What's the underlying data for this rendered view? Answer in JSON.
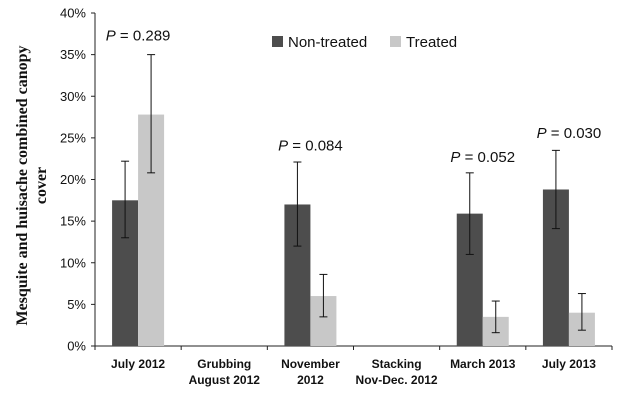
{
  "chart_data": {
    "type": "bar",
    "ylabel_lines": [
      "Mesquite and huisache combined canopy",
      "cover"
    ],
    "ylim": [
      0,
      40
    ],
    "yticks": [
      0,
      5,
      10,
      15,
      20,
      25,
      30,
      35,
      40
    ],
    "ytick_labels": [
      "0%",
      "5%",
      "10%",
      "15%",
      "20%",
      "25%",
      "30%",
      "35%",
      "40%"
    ],
    "categories": [
      [
        "July 2012"
      ],
      [
        "Grubbing",
        "August 2012"
      ],
      [
        "November",
        "2012"
      ],
      [
        "Stacking",
        "Nov-Dec. 2012"
      ],
      [
        "March 2013"
      ],
      [
        "July 2013"
      ]
    ],
    "series": [
      {
        "name": "Non-treated",
        "color": "#4d4d4d",
        "values": [
          17.5,
          null,
          17.0,
          null,
          15.9,
          18.8
        ],
        "err_low": [
          13.0,
          null,
          12.0,
          null,
          11.0,
          14.1
        ],
        "err_high": [
          22.2,
          null,
          22.1,
          null,
          20.8,
          23.5
        ]
      },
      {
        "name": "Treated",
        "color": "#c8c8c8",
        "values": [
          27.8,
          null,
          6.0,
          null,
          3.5,
          4.0
        ],
        "err_low": [
          20.8,
          null,
          3.5,
          null,
          1.6,
          1.9
        ],
        "err_high": [
          35.0,
          null,
          8.6,
          null,
          5.4,
          6.3
        ]
      }
    ],
    "annotations": [
      {
        "category": 0,
        "italic": "P",
        "rest": " = 0.289",
        "y": 36.7
      },
      {
        "category": 2,
        "italic": "P",
        "rest": " = 0.084",
        "y": 23.5
      },
      {
        "category": 4,
        "italic": "P",
        "rest": " = 0.052",
        "y": 22.1
      },
      {
        "category": 5,
        "italic": "P",
        "rest": " = 0.030",
        "y": 25.0
      }
    ],
    "legend_position": "top-right",
    "grid": false
  }
}
